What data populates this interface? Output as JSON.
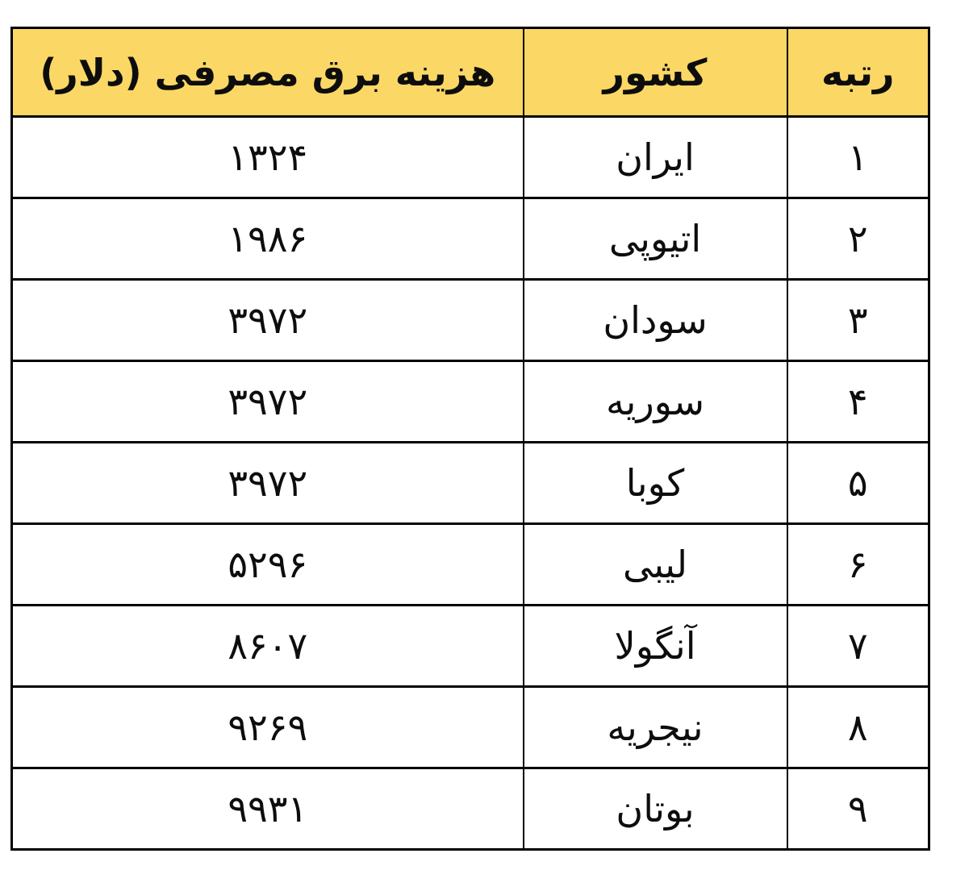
{
  "colors": {
    "header_bg": "#FBD765",
    "border": "#000000",
    "page_bg": "#FFFFFF",
    "text": "#0D0D0D"
  },
  "table": {
    "direction": "rtl",
    "columns": [
      {
        "key": "rank",
        "label": "رتبه"
      },
      {
        "key": "country",
        "label": "کشور"
      },
      {
        "key": "cost",
        "label": "هزینه برق مصرفی (دلار)"
      }
    ],
    "rows": [
      {
        "rank": "۱",
        "country": "ایران",
        "cost": "۱۳۲۴"
      },
      {
        "rank": "۲",
        "country": "اتیوپی",
        "cost": "۱۹۸۶"
      },
      {
        "rank": "۳",
        "country": "سودان",
        "cost": "۳۹۷۲"
      },
      {
        "rank": "۴",
        "country": "سوریه",
        "cost": "۳۹۷۲"
      },
      {
        "rank": "۵",
        "country": "کوبا",
        "cost": "۳۹۷۲"
      },
      {
        "rank": "۶",
        "country": "لیبی",
        "cost": "۵۲۹۶"
      },
      {
        "rank": "۷",
        "country": "آنگولا",
        "cost": "۸۶۰۷"
      },
      {
        "rank": "۸",
        "country": "نیجریه",
        "cost": "۹۲۶۹"
      },
      {
        "rank": "۹",
        "country": "بوتان",
        "cost": "۹۹۳۱"
      }
    ]
  },
  "chart_data": {
    "type": "table",
    "title": "",
    "columns": [
      "رتبه",
      "کشور",
      "هزینه برق مصرفی (دلار)"
    ],
    "rows": [
      [
        "۱",
        "ایران",
        "۱۳۲۴"
      ],
      [
        "۲",
        "اتیوپی",
        "۱۹۸۶"
      ],
      [
        "۳",
        "سودان",
        "۳۹۷۲"
      ],
      [
        "۴",
        "سوریه",
        "۳۹۷۲"
      ],
      [
        "۵",
        "کوبا",
        "۳۹۷۲"
      ],
      [
        "۶",
        "لیبی",
        "۵۲۹۶"
      ],
      [
        "۷",
        "آنگولا",
        "۸۶۰۷"
      ],
      [
        "۸",
        "نیجریه",
        "۹۲۶۹"
      ],
      [
        "۹",
        "بوتان",
        "۹۹۳۱"
      ]
    ],
    "ranks_numeric": [
      1,
      2,
      3,
      4,
      5,
      6,
      7,
      8,
      9
    ],
    "costs_numeric": [
      1324,
      1986,
      3972,
      3972,
      3972,
      5296,
      8607,
      9269,
      9931
    ],
    "layout_hints": {
      "header_fill": "#FBD765",
      "grid": "all black borders",
      "text_align": "center",
      "direction": "rtl"
    }
  }
}
